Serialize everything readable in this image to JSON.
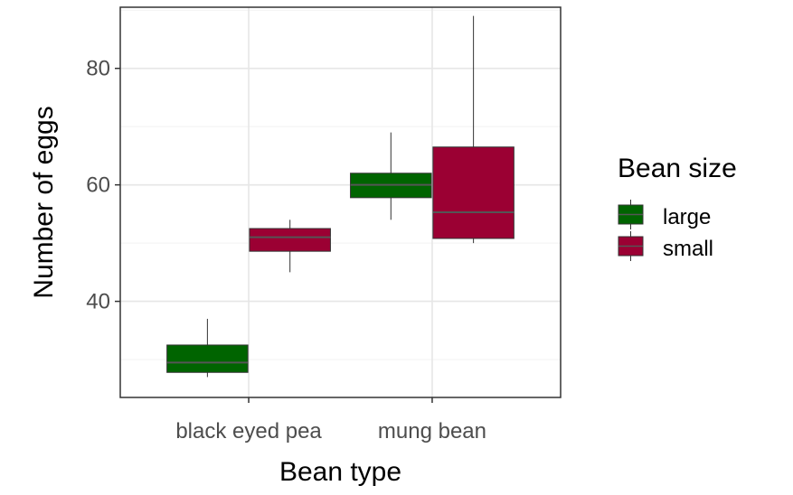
{
  "chart_data": {
    "type": "box",
    "title": "",
    "xlabel": "Bean type",
    "ylabel": "Number of eggs",
    "categories": [
      "black eyed pea",
      "mung bean"
    ],
    "y_ticks": [
      40,
      60,
      80
    ],
    "ylim": [
      23.5,
      90.5
    ],
    "grid": true,
    "legend": {
      "title": "Bean size",
      "position": "right"
    },
    "series": [
      {
        "name": "large",
        "color": "#006400",
        "boxes": [
          {
            "category": "black eyed pea",
            "min": 27,
            "q1": 27.8,
            "median": 29.5,
            "q3": 32.5,
            "max": 37
          },
          {
            "category": "mung bean",
            "min": 54,
            "q1": 57.8,
            "median": 60,
            "q3": 62,
            "max": 69
          }
        ]
      },
      {
        "name": "small",
        "color": "#9b0033",
        "boxes": [
          {
            "category": "black eyed pea",
            "min": 45,
            "q1": 48.6,
            "median": 51,
            "q3": 52.5,
            "max": 54
          },
          {
            "category": "mung bean",
            "min": 50,
            "q1": 50.8,
            "median": 55.3,
            "q3": 66.5,
            "max": 89
          }
        ]
      }
    ]
  }
}
